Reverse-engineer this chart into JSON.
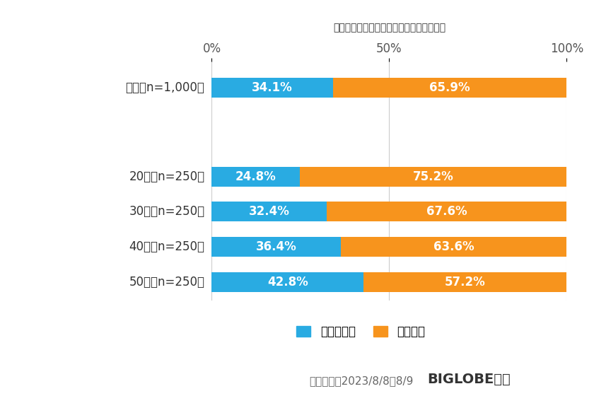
{
  "title": "防災の日が何月何日であるか知っているか",
  "categories": [
    "全体（n=1,000）",
    "20代（n=250）",
    "30代（n=250）",
    "40代（n=250）",
    "50代（n=250）"
  ],
  "know_values": [
    34.1,
    24.8,
    32.4,
    36.4,
    42.8
  ],
  "dont_know_values": [
    65.9,
    75.2,
    67.6,
    63.6,
    57.2
  ],
  "know_color": "#29ABE2",
  "dont_know_color": "#F7941D",
  "know_label": "知っている",
  "dont_know_label": "知らない",
  "bar_height": 0.42,
  "background_color": "#FFFFFF",
  "text_color_on_bar": "#FFFFFF",
  "annotation_fontsize": 12,
  "label_fontsize": 12,
  "title_fontsize": 17,
  "legend_fontsize": 12,
  "tick_fontsize": 12,
  "footer_text": "調査期間：2023/8/8～8/9",
  "footer_brand": "BIGLOBE調べ",
  "xlim": [
    0,
    100
  ],
  "xticks": [
    0,
    50,
    100
  ],
  "xticklabels": [
    "0%",
    "50%",
    "100%"
  ],
  "custom_y": [
    3.8,
    1.9,
    1.15,
    0.4,
    -0.35
  ],
  "ylim": [
    -0.75,
    4.35
  ]
}
